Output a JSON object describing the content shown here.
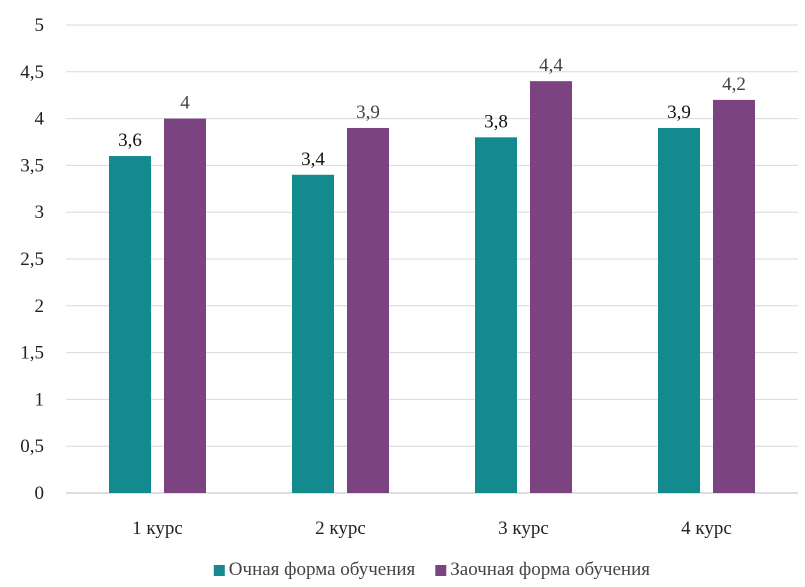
{
  "chart_data": {
    "type": "bar",
    "title": "",
    "xlabel": "",
    "ylabel": "",
    "categories": [
      "1 курс",
      "2 курс",
      "3 курс",
      "4 курс"
    ],
    "ylim": [
      0,
      5
    ],
    "yticks": [
      "0",
      "0,5",
      "1",
      "1,5",
      "2",
      "2,5",
      "3",
      "3,5",
      "4",
      "4,5",
      "5"
    ],
    "grid": true,
    "legend_position": "bottom",
    "series": [
      {
        "name": "Очная форма обучения",
        "color": "#138a8e",
        "values": [
          3.6,
          3.4,
          3.8,
          3.9
        ],
        "labels": [
          "3,6",
          "3,4",
          "3,8",
          "3,9"
        ]
      },
      {
        "name": "Заочная форма обучения",
        "color": "#7b4380",
        "values": [
          4,
          3.9,
          4.4,
          4.2
        ],
        "labels": [
          "4",
          "3,9",
          "4,4",
          "4,2"
        ]
      }
    ]
  }
}
